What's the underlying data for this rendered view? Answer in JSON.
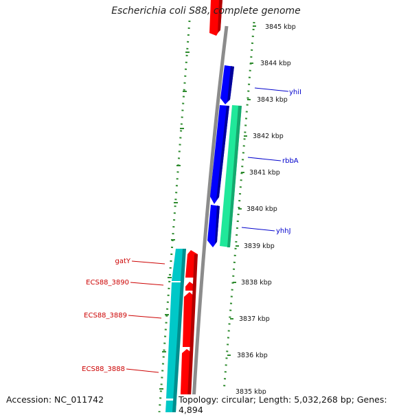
{
  "title": "Escherichia coli S88, complete genome",
  "accession": "Accession: NC_011742",
  "topology": "Topology: circular; Length: 5,032,268 bp; Genes: 4,894",
  "colors": {
    "backbone": "#8c8c8c",
    "tick": "#2e8b2e",
    "forward_gene": "#ff0000",
    "forward_gene_alt": "#00c8c8",
    "reverse_gene": "#0000ff",
    "reverse_gene_alt": "#20e89a",
    "label_reverse": "#0000cc",
    "label_forward": "#cc0000"
  },
  "scale_labels": [
    "3845 kbp",
    "3844 kbp",
    "3843 kbp",
    "3842 kbp",
    "3841 kbp",
    "3840 kbp",
    "3839 kbp",
    "3838 kbp",
    "3837 kbp",
    "3836 kbp",
    "3835 kbp"
  ],
  "gene_labels": [
    {
      "name": "yhiI",
      "strand": "reverse"
    },
    {
      "name": "rbbA",
      "strand": "reverse"
    },
    {
      "name": "yhhJ",
      "strand": "reverse"
    },
    {
      "name": "gatY",
      "strand": "forward"
    },
    {
      "name": "ECS88_3890",
      "strand": "forward"
    },
    {
      "name": "ECS88_3889",
      "strand": "forward"
    },
    {
      "name": "ECS88_3888",
      "strand": "forward"
    }
  ]
}
